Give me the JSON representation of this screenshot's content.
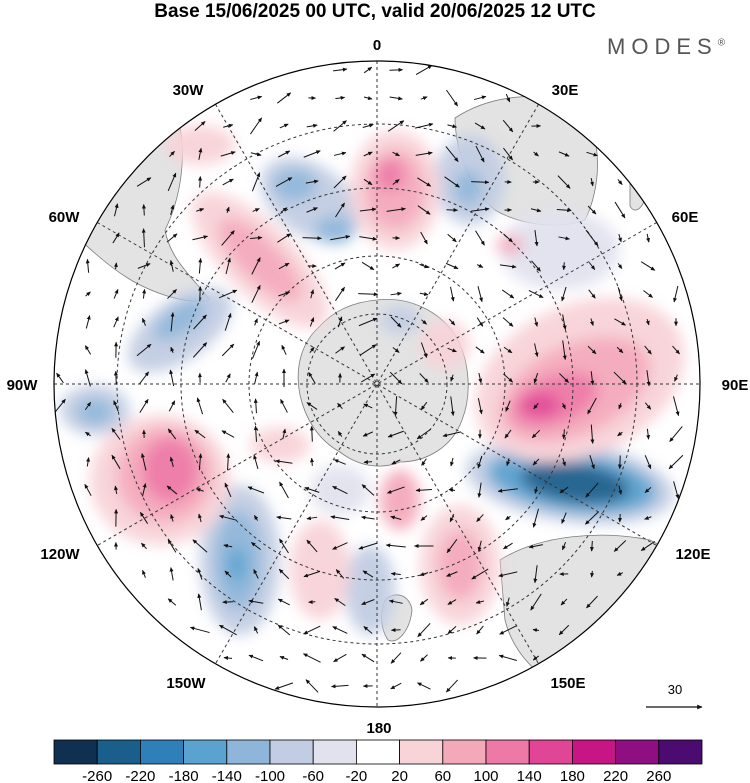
{
  "title": "Base 15/06/2025 00 UTC, valid 20/06/2025 12 UTC",
  "brand": "MODES",
  "brand_mark": "®",
  "map": {
    "projection": "south polar stereographic",
    "longitude_labels": [
      "0",
      "30E",
      "60E",
      "90E",
      "120E",
      "150E",
      "180",
      "150W",
      "120W",
      "90W",
      "60W",
      "30W"
    ],
    "vector_reference_label": "30",
    "colors": {
      "land": "#e3e3e3",
      "coast": "#7a7a7a",
      "grid": "#333333",
      "arrow": "#111111"
    }
  },
  "colorbar": {
    "colors": [
      "#0f3050",
      "#1a5f8c",
      "#2f80b8",
      "#5aa2cf",
      "#8fb6da",
      "#c2cde3",
      "#e2e2ef",
      "#ffffff",
      "#f8d3d8",
      "#f4a9bb",
      "#ee78a6",
      "#e14595",
      "#c71585",
      "#8f0f82",
      "#4b0b70"
    ],
    "tick_labels": [
      "-260",
      "-220",
      "-180",
      "-140",
      "-100",
      "-60",
      "-20",
      "20",
      "60",
      "100",
      "140",
      "180",
      "220",
      "260"
    ]
  }
}
